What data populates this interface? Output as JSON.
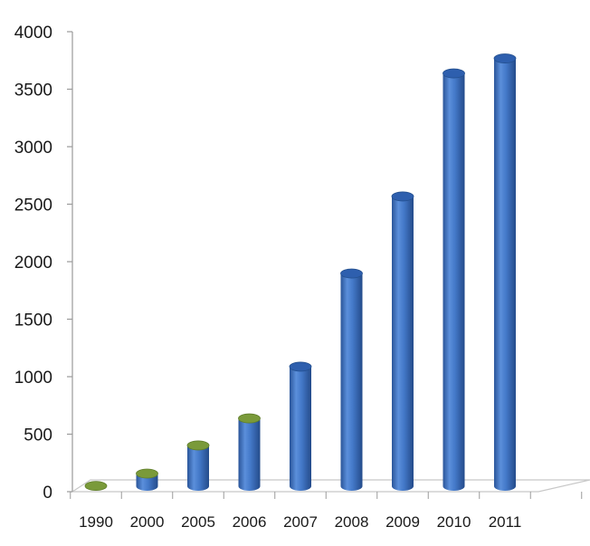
{
  "chart_data": {
    "type": "bar",
    "categories": [
      "1990",
      "2000",
      "2005",
      "2006",
      "2007",
      "2008",
      "2009",
      "2010",
      "2011"
    ],
    "values": [
      3,
      110,
      355,
      590,
      1040,
      1850,
      2520,
      3590,
      3720
    ],
    "ylim": [
      0,
      4000
    ],
    "yticks": [
      0,
      500,
      1000,
      1500,
      2000,
      2500,
      3000,
      3500,
      4000
    ],
    "title": "",
    "xlabel": "",
    "ylabel": "",
    "grid": false,
    "legend": "none",
    "colors": {
      "bar_body": "#3f74c6",
      "bar_body_dark": "#2a5599",
      "bar_body_light": "#7fa6e3",
      "bar_top": "#2e5fae",
      "short_bar_top": "#7a9a3a",
      "axis": "#9a9a9a",
      "floor": "#c8c8c8"
    }
  }
}
